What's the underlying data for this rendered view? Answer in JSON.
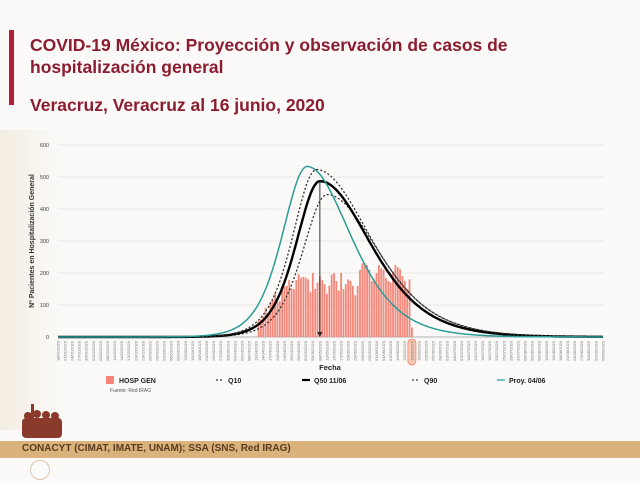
{
  "header": {
    "title": "COVID-19 México: Proyección y observación de casos de hospitalización general",
    "subtitle": "Veracruz, Veracruz al 16 junio, 2020"
  },
  "footer": {
    "text": "CONACYT (CIMAT, IMATE, UNAM);   SSA (SNS, Red IRAG)",
    "logo_text": "MÉXICO"
  },
  "colors": {
    "accent": "#8c1c30",
    "bars": "#f4877a",
    "q50": "#000000",
    "quantiles": "#333333",
    "proy": "#2a9d96",
    "band": "#d9b27c"
  },
  "chart_data": {
    "type": "bar+line",
    "xlabel": "Fecha",
    "ylabel": "Nº Pacientes en Hospitalización General",
    "ylim": [
      0,
      600
    ],
    "yticks": [
      "0",
      "100",
      "200",
      "300",
      "400",
      "500",
      "600"
    ],
    "source": "Fuente: Red IRAG",
    "highlight_date": "16/06/2020",
    "x_labels": [
      "18/01/2020",
      "21/01/2020",
      "24/01/2020",
      "27/01/2020",
      "30/01/2020",
      "02/02/2020",
      "05/02/2020",
      "08/02/2020",
      "11/02/2020",
      "14/02/2020",
      "17/02/2020",
      "20/02/2020",
      "23/02/2020",
      "26/02/2020",
      "29/02/2020",
      "03/03/2020",
      "06/03/2020",
      "09/03/2020",
      "12/03/2020",
      "15/03/2020",
      "18/03/2020",
      "21/03/2020",
      "24/03/2020",
      "27/03/2020",
      "30/03/2020",
      "02/04/2020",
      "05/04/2020",
      "08/04/2020",
      "11/04/2020",
      "14/04/2020",
      "17/04/2020",
      "20/04/2020",
      "23/04/2020",
      "26/04/2020",
      "29/04/2020",
      "02/05/2020",
      "05/05/2020",
      "08/05/2020",
      "11/05/2020",
      "14/05/2020",
      "17/05/2020",
      "20/05/2020",
      "23/05/2020",
      "26/05/2020",
      "29/05/2020",
      "01/06/2020",
      "04/06/2020",
      "07/06/2020",
      "10/06/2020",
      "13/06/2020",
      "16/06/2020",
      "19/06/2020",
      "22/06/2020",
      "25/06/2020",
      "28/06/2020",
      "01/07/2020",
      "04/07/2020",
      "07/07/2020",
      "10/07/2020",
      "13/07/2020",
      "16/07/2020",
      "19/07/2020",
      "22/07/2020",
      "25/07/2020",
      "28/07/2020",
      "31/07/2020",
      "03/08/2020",
      "06/08/2020",
      "09/08/2020",
      "12/08/2020",
      "15/08/2020",
      "18/08/2020",
      "21/08/2020",
      "24/08/2020",
      "27/08/2020",
      "30/08/2020",
      "02/09/2020",
      "05/09/2020"
    ],
    "bars": {
      "name": "HOSP GEN",
      "start_date": "12/04/2020",
      "values": [
        50,
        55,
        65,
        92,
        75,
        110,
        115,
        135,
        110,
        112,
        148,
        158,
        160,
        178,
        152,
        150,
        178,
        196,
        184,
        188,
        185,
        180,
        140,
        200,
        150,
        170,
        190,
        178,
        165,
        135,
        160,
        195,
        200,
        175,
        145,
        200,
        150,
        165,
        180,
        175,
        160,
        130,
        160,
        210,
        230,
        232,
        225,
        210,
        175,
        180,
        200,
        225,
        215,
        210,
        185,
        175,
        170,
        205,
        225,
        218,
        212,
        190,
        175,
        150,
        180,
        30
      ]
    },
    "series": [
      {
        "name": "Q10",
        "style": "dotted",
        "peak": 445,
        "peak_label_index": 38,
        "rise_width": 4.6,
        "decay_width": 9.8
      },
      {
        "name": "Q50 11/06",
        "style": "solid-bold",
        "peak": 487,
        "peak_label_index": 37,
        "rise_width": 4.5,
        "decay_width": 9.6
      },
      {
        "name": "Q90",
        "style": "dotted",
        "peak": 523,
        "peak_label_index": 36.5,
        "rise_width": 4.5,
        "decay_width": 10.2
      },
      {
        "name": "Proy. 04/06",
        "style": "solid",
        "peak": 533,
        "peak_label_index": 35.2,
        "rise_width": 4.7,
        "decay_width": 8.2
      }
    ],
    "legend_position": "bottom"
  }
}
